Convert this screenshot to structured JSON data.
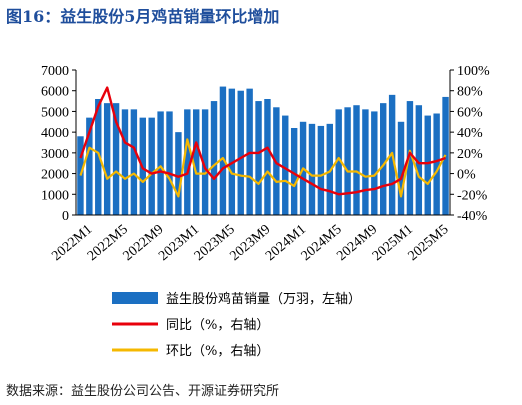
{
  "title": "图16：益生股份5月鸡苗销量环比增加",
  "source": "数据来源：益生股份公司公告、开源证券研究所",
  "colors": {
    "bar": "#1b6fc2",
    "yoy": "#e8000b",
    "mom": "#f5b800",
    "title": "#1f4e9c"
  },
  "chart_data": {
    "type": "bar",
    "x_tick_labels": [
      "2022M1",
      "2022M5",
      "2022M9",
      "2023M1",
      "2023M5",
      "2023M9",
      "2024M1",
      "2024M5",
      "2024M9",
      "2025M1",
      "2025M5"
    ],
    "x_tick_every": 4,
    "y_left": {
      "range": [
        0,
        7000
      ],
      "ticks": [
        "0",
        "1000",
        "2000",
        "3000",
        "4000",
        "5000",
        "6000",
        "7000"
      ]
    },
    "y_right": {
      "range": [
        -40,
        100
      ],
      "ticks": [
        "-40%",
        "-20%",
        "0%",
        "20%",
        "40%",
        "60%",
        "80%",
        "100%"
      ]
    },
    "series": [
      {
        "name": "益生股份鸡苗销量（万羽，左轴）",
        "kind": "bar",
        "axis": "left",
        "values": [
          3800,
          4700,
          5600,
          5400,
          5400,
          5100,
          5100,
          4700,
          4700,
          5000,
          5000,
          4000,
          5100,
          5100,
          5100,
          5500,
          6200,
          6100,
          6000,
          6100,
          5500,
          5600,
          5200,
          4800,
          4200,
          4500,
          4400,
          4300,
          4400,
          5100,
          5200,
          5300,
          5100,
          5000,
          5400,
          5800,
          4500,
          5500,
          5300,
          4800,
          4900,
          5700
        ]
      },
      {
        "name": "同比（%，右轴）",
        "kind": "line",
        "axis": "right",
        "values": [
          15,
          40,
          65,
          83,
          50,
          30,
          25,
          5,
          0,
          2,
          0,
          -3,
          0,
          30,
          5,
          -5,
          5,
          10,
          15,
          20,
          20,
          25,
          10,
          5,
          0,
          -5,
          -10,
          -15,
          -17,
          -20,
          -19,
          -18,
          -16,
          -15,
          -12,
          -10,
          -5,
          20,
          10,
          10,
          12,
          15
        ]
      },
      {
        "name": "环比（%，右轴）",
        "kind": "line",
        "axis": "right",
        "values": [
          -2,
          25,
          20,
          -5,
          2,
          -5,
          0,
          -8,
          0,
          7,
          -5,
          -22,
          33,
          0,
          0,
          8,
          15,
          0,
          -2,
          -3,
          -10,
          2,
          -8,
          -7,
          -12,
          5,
          -2,
          -2,
          2,
          15,
          2,
          2,
          -3,
          -2,
          8,
          20,
          -22,
          22,
          -3,
          -10,
          2,
          18
        ]
      }
    ],
    "legend_position": "bottom"
  }
}
